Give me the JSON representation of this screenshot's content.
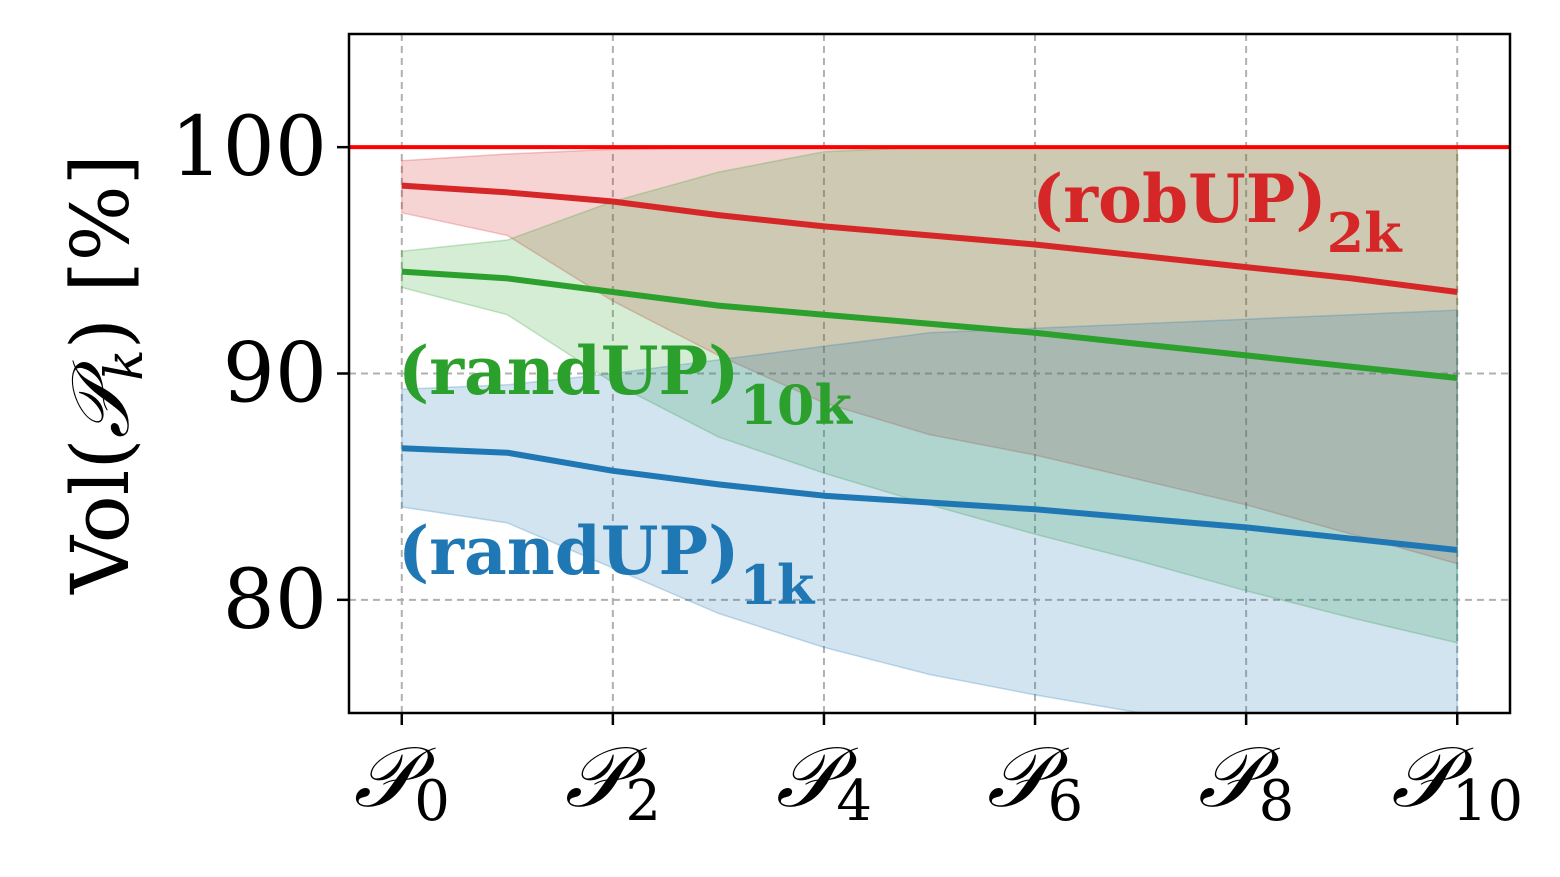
{
  "chart_data": {
    "type": "line",
    "ylabel_parts": {
      "pre": "Vol(",
      "cal": "𝒫",
      "sub": "k",
      "post": ")  [%]"
    },
    "xtick_symbol": "𝒫",
    "xtick_subs": [
      "0",
      "2",
      "4",
      "6",
      "8",
      "10"
    ],
    "xtick_positions": [
      0,
      2,
      4,
      6,
      8,
      10
    ],
    "yticks": [
      80,
      90,
      100
    ],
    "ylim": [
      75,
      105
    ],
    "xlim": [
      -0.5,
      10.5
    ],
    "grid": true,
    "x": [
      0,
      1,
      2,
      3,
      4,
      5,
      6,
      7,
      8,
      9,
      10
    ],
    "reference_line": {
      "y": 100,
      "color": "#ff0000"
    },
    "series": [
      {
        "label_main": "(robUP)",
        "label_sub": "2k",
        "color": "#d62728",
        "mean": [
          98.3,
          98.0,
          97.6,
          97.0,
          96.5,
          96.1,
          95.7,
          95.2,
          94.7,
          94.2,
          93.6
        ],
        "upper": [
          99.4,
          99.7,
          99.9,
          100,
          100,
          100,
          100,
          100,
          100,
          100,
          100
        ],
        "lower": [
          97.1,
          96.1,
          93.2,
          90.8,
          88.7,
          87.3,
          86.4,
          85.3,
          84.2,
          82.9,
          81.6
        ]
      },
      {
        "label_main": "(randUP)",
        "label_sub": "10k",
        "color": "#2ca02c",
        "mean": [
          94.5,
          94.2,
          93.6,
          93.0,
          92.6,
          92.2,
          91.8,
          91.3,
          90.8,
          90.3,
          89.8
        ],
        "upper": [
          95.4,
          95.9,
          97.6,
          98.9,
          99.8,
          100,
          100,
          100,
          100,
          100,
          100
        ],
        "lower": [
          93.8,
          92.6,
          89.6,
          87.2,
          85.6,
          84.2,
          82.9,
          81.7,
          80.4,
          79.2,
          78.1
        ]
      },
      {
        "label_main": "(randUP)",
        "label_sub": "1k",
        "color": "#1f77b4",
        "mean": [
          86.7,
          86.5,
          85.7,
          85.1,
          84.6,
          84.3,
          84.0,
          83.6,
          83.2,
          82.7,
          82.2
        ],
        "upper": [
          89.3,
          89.5,
          90.0,
          90.6,
          91.2,
          91.8,
          92.0,
          92.2,
          92.4,
          92.6,
          92.8
        ],
        "lower": [
          84.1,
          83.4,
          81.4,
          79.4,
          77.9,
          76.7,
          75.8,
          75.0,
          74.0,
          73.0,
          72.0
        ]
      }
    ]
  }
}
